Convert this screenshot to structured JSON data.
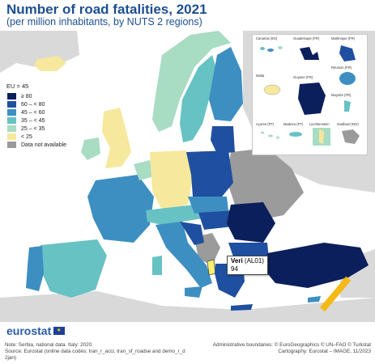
{
  "title": "Number of road fatalities, 2021",
  "subtitle": "(per million inhabitants, by NUTS 2 regions)",
  "legend": {
    "header": "EU = 45",
    "items": [
      {
        "label": "≥ 80",
        "color": "#0b1f5c"
      },
      {
        "label": "60 – < 80",
        "color": "#1f4fa0"
      },
      {
        "label": "45 – < 60",
        "color": "#3d8fc1"
      },
      {
        "label": "35 – < 45",
        "color": "#67c2c4"
      },
      {
        "label": "25 – < 35",
        "color": "#a8dcc3"
      },
      {
        "label": "< 25",
        "color": "#f6e89c"
      },
      {
        "label": "Data not available",
        "color": "#9b9b9b"
      }
    ]
  },
  "insets": [
    {
      "label": "Canarias (ES)"
    },
    {
      "label": "Guadeloupe (FR)"
    },
    {
      "label": "Martinique (FR)"
    },
    {
      "label": "Réunion (FR)"
    },
    {
      "label": "Malta"
    },
    {
      "label": "Guyane (FR)"
    },
    {
      "label": "Mayotte (FR)"
    },
    {
      "label": "Açores (PT)"
    },
    {
      "label": "Madeira (PT)"
    },
    {
      "label": "Liechtenstein"
    },
    {
      "label": "Svalbard (NO)"
    }
  ],
  "tooltip": {
    "name": "Veri",
    "code": "(AL01)",
    "value": "94"
  },
  "footer": {
    "logo": "eurostat",
    "note_lines": [
      "Note: Serbia, national data. Italy: 2020.",
      "Source: Eurostat (online data codes: tran_r_acci, tran_sf_roadse and demo_r_d",
      "2jan)"
    ],
    "credit_lines": [
      "Administrative boundaries: © EuroGeographics © UN–FAO © Turkstat",
      "Cartography: Eurostat – IMAGE, 11/2023"
    ]
  },
  "colors": {
    "title": "#1d4f91",
    "nodata": "#9b9b9b",
    "outside": "#d9d9d9",
    "sea": "#ffffff"
  }
}
